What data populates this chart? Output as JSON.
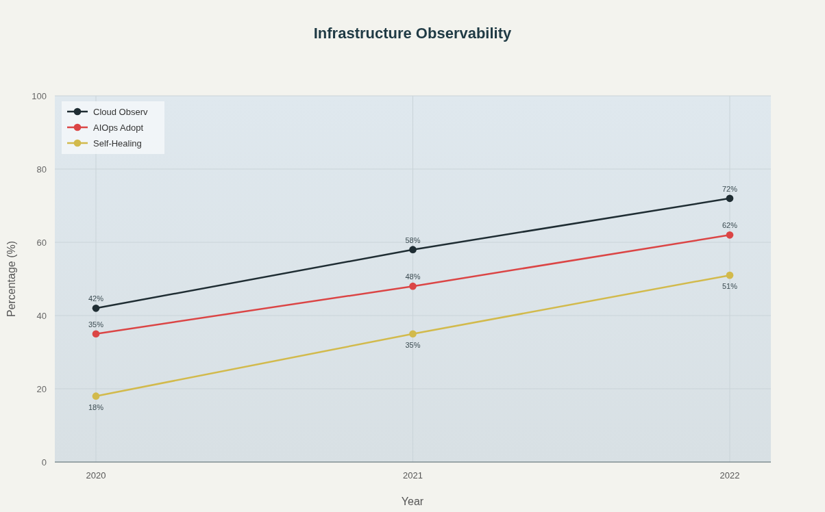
{
  "chart_data": {
    "type": "line",
    "title": "Infrastructure Observability",
    "xlabel": "Year",
    "ylabel": "Percentage (%)",
    "categories": [
      "2020",
      "2021",
      "2022"
    ],
    "series": [
      {
        "name": "Cloud Observ",
        "color": "#1f2d33",
        "values": [
          42,
          58,
          72
        ],
        "value_labels": [
          "42%",
          "58%",
          "72%"
        ]
      },
      {
        "name": "AIOps Adopt",
        "color": "#db4545",
        "values": [
          35,
          48,
          62
        ],
        "value_labels": [
          "35%",
          "48%",
          "62%"
        ]
      },
      {
        "name": "Self-Healing",
        "color": "#d2ba4c",
        "values": [
          18,
          35,
          51
        ],
        "value_labels": [
          "18%",
          "35%",
          "51%"
        ]
      }
    ],
    "ylim": [
      0,
      100
    ],
    "yticks": [
      0,
      20,
      40,
      60,
      80,
      100
    ],
    "grid": true,
    "legend": "top left",
    "marker": "circle",
    "line_style": "solid"
  }
}
